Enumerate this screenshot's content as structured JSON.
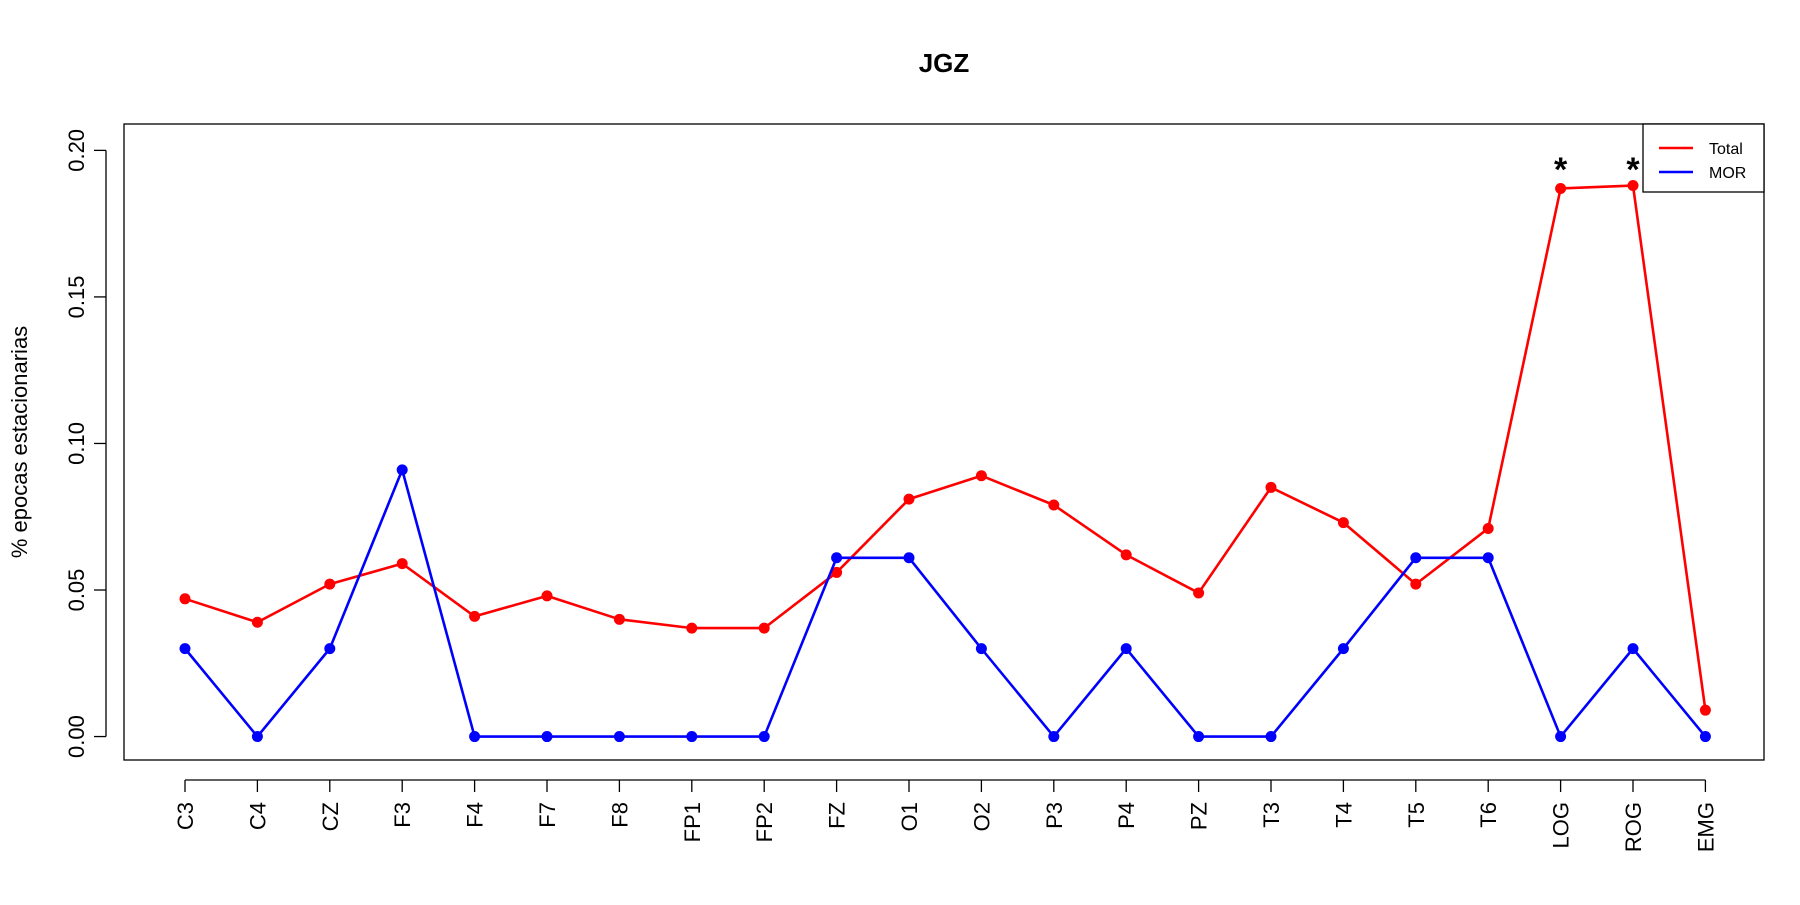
{
  "chart_data": {
    "type": "line",
    "title": "JGZ",
    "xlabel": "",
    "ylabel": "% epocas estacionarias",
    "categories": [
      "C3",
      "C4",
      "CZ",
      "F3",
      "F4",
      "F7",
      "F8",
      "FP1",
      "FP2",
      "FZ",
      "O1",
      "O2",
      "P3",
      "P4",
      "PZ",
      "T3",
      "T4",
      "T5",
      "T6",
      "LOG",
      "ROG",
      "EMG"
    ],
    "ylim": [
      -0.008,
      0.209
    ],
    "yticks": [
      0.0,
      0.05,
      0.1,
      0.15,
      0.2
    ],
    "ytick_labels": [
      "0.00",
      "0.05",
      "0.10",
      "0.15",
      "0.20"
    ],
    "grid": false,
    "legend_position": "top-right",
    "series": [
      {
        "name": "Total",
        "color": "#ff0000",
        "values": [
          0.047,
          0.039,
          0.052,
          0.059,
          0.041,
          0.048,
          0.04,
          0.037,
          0.037,
          0.056,
          0.081,
          0.089,
          0.079,
          0.062,
          0.049,
          0.085,
          0.073,
          0.052,
          0.071,
          0.187,
          0.188,
          0.009
        ]
      },
      {
        "name": "MOR",
        "color": "#0000ff",
        "values": [
          0.03,
          0.0,
          0.03,
          0.091,
          0.0,
          0.0,
          0.0,
          0.0,
          0.0,
          0.061,
          0.061,
          0.03,
          0.0,
          0.03,
          0.0,
          0.0,
          0.03,
          0.061,
          0.061,
          0.0,
          0.03,
          0.0
        ]
      }
    ],
    "annotations": [
      {
        "text": "*",
        "category": "LOG",
        "y": 0.197
      },
      {
        "text": "*",
        "category": "ROG",
        "y": 0.197
      }
    ]
  }
}
